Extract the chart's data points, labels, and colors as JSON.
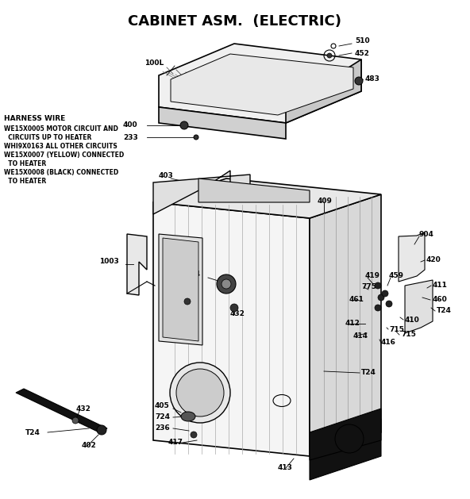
{
  "title": "CABINET ASM.  (ELECTRIC)",
  "title_fontsize": 13,
  "title_fontweight": "bold",
  "bg_color": "#ffffff",
  "line_color": "#000000",
  "harness_wire_title": "HARNESS WIRE",
  "harness_wire_lines": [
    "WE15X0005 MOTOR CIRCUIT AND",
    "  CIRCUITS UP TO HEATER",
    "WHI9X0163 ALL OTHER CIRCUITS",
    "WE15X0007 (YELLOW) CONNECTED",
    "  TO HEATER",
    "WE15X0008 (BLACK) CONNECTED",
    "  TO HEATER"
  ]
}
